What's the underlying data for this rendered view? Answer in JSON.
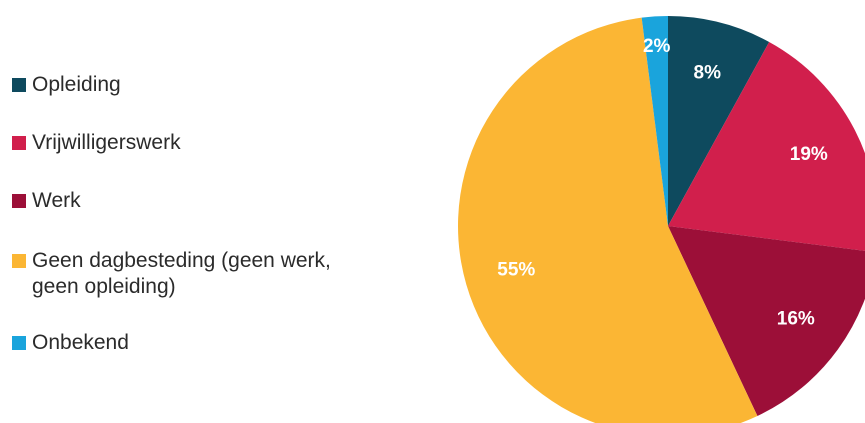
{
  "chart_data": {
    "type": "pie",
    "legend_position": "left",
    "slices": [
      {
        "name": "Opleiding",
        "value": 8,
        "label": "8%",
        "color": "#0e4a5e"
      },
      {
        "name": "Vrijwilligerswerk",
        "value": 19,
        "label": "19%",
        "color": "#d11f4c"
      },
      {
        "name": "Werk",
        "value": 16,
        "label": "16%",
        "color": "#9c0f38"
      },
      {
        "name": "Geen dagbesteding (geen werk, geen opleiding)",
        "value": 55,
        "label": "55%",
        "color": "#fbb634"
      },
      {
        "name": "Onbekend",
        "value": 2,
        "label": "2%",
        "color": "#1aa4dc"
      }
    ]
  }
}
